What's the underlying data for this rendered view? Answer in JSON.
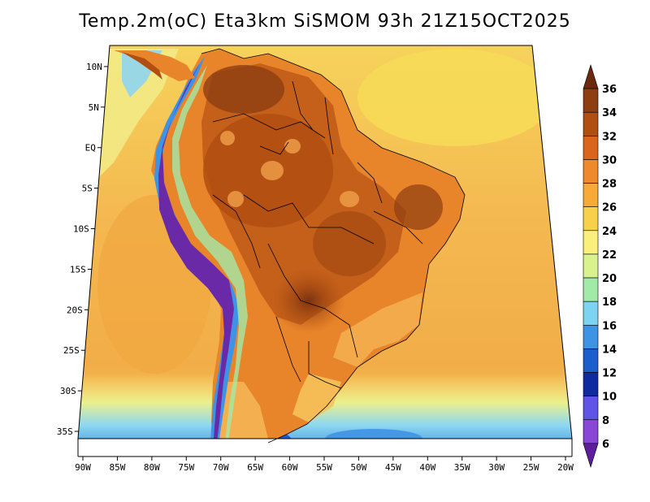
{
  "title": "Temp.2m(oC) Eta3km SiSMOM 93h 21Z15OCT2025",
  "lat_ticks": [
    {
      "value": 10,
      "label": "10N"
    },
    {
      "value": 5,
      "label": "5N"
    },
    {
      "value": 0,
      "label": "EQ"
    },
    {
      "value": -5,
      "label": "5S"
    },
    {
      "value": -10,
      "label": "10S"
    },
    {
      "value": -15,
      "label": "15S"
    },
    {
      "value": -20,
      "label": "20S"
    },
    {
      "value": -25,
      "label": "25S"
    },
    {
      "value": -30,
      "label": "30S"
    },
    {
      "value": -35,
      "label": "35S"
    }
  ],
  "lon_ticks": [
    {
      "value": -90,
      "label": "90W"
    },
    {
      "value": -85,
      "label": "85W"
    },
    {
      "value": -80,
      "label": "80W"
    },
    {
      "value": -75,
      "label": "75W"
    },
    {
      "value": -70,
      "label": "70W"
    },
    {
      "value": -65,
      "label": "65W"
    },
    {
      "value": -60,
      "label": "60W"
    },
    {
      "value": -55,
      "label": "55W"
    },
    {
      "value": -50,
      "label": "50W"
    },
    {
      "value": -45,
      "label": "45W"
    },
    {
      "value": -40,
      "label": "40W"
    },
    {
      "value": -35,
      "label": "35W"
    },
    {
      "value": -30,
      "label": "30W"
    },
    {
      "value": -25,
      "label": "25W"
    },
    {
      "value": -20,
      "label": "20W"
    }
  ],
  "colorbar": {
    "labels": [
      "36",
      "34",
      "32",
      "30",
      "28",
      "26",
      "24",
      "22",
      "20",
      "18",
      "16",
      "14",
      "12",
      "10",
      "8",
      "6"
    ],
    "colors_top_to_bottom": [
      "#6b2a0e",
      "#8e3f12",
      "#b14e10",
      "#d9661a",
      "#f0892c",
      "#f7aa38",
      "#f9d04a",
      "#fbef7c",
      "#d9f28d",
      "#a2eaa8",
      "#7cd3f2",
      "#3e94e4",
      "#1c5dcc",
      "#0e2aa0",
      "#5f53e8",
      "#8a46d6",
      "#5d1d9c"
    ]
  },
  "colors": {
    "ocean_warm": "#f6c15a",
    "ocean_mid": "#f4b04a",
    "ocean_cool": "#fbe46a",
    "land_hot": "#b14e10",
    "land_very_hot": "#7a3210",
    "land_warm": "#e8842a",
    "andes_cold": "#6a2aa8",
    "andes_cool": "#3b8de0"
  }
}
